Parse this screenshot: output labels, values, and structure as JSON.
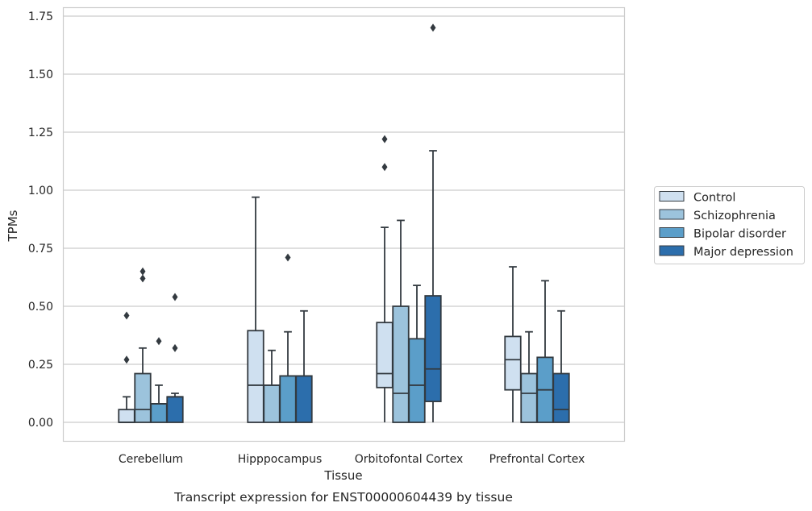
{
  "chart_data": {
    "type": "box",
    "title": "",
    "caption": "Transcript expression for ENST00000604439 by tissue",
    "xlabel": "Tissue",
    "ylabel": "TPMs",
    "ylim": [
      -0.08,
      1.78
    ],
    "yticks": [
      0.0,
      0.25,
      0.5,
      0.75,
      1.0,
      1.25,
      1.5,
      1.75
    ],
    "ytick_labels": [
      "0.00",
      "0.25",
      "0.50",
      "0.75",
      "1.00",
      "1.25",
      "1.50",
      "1.75"
    ],
    "grid": "horizontal",
    "legend_position": "right",
    "categories": [
      "Cerebellum",
      "Hipppocampus",
      "Orbitofontal Cortex",
      "Prefrontal Cortex"
    ],
    "series": [
      {
        "name": "Control",
        "color": "#cfe0f0",
        "boxes": [
          {
            "q1": 0.0,
            "median": 0.0,
            "q3": 0.055,
            "whisker_low": 0.0,
            "whisker_high": 0.11,
            "outliers": [
              0.27,
              0.46
            ]
          },
          {
            "q1": 0.0,
            "median": 0.16,
            "q3": 0.395,
            "whisker_low": 0.0,
            "whisker_high": 0.97,
            "outliers": []
          },
          {
            "q1": 0.15,
            "median": 0.21,
            "q3": 0.43,
            "whisker_low": 0.0,
            "whisker_high": 0.84,
            "outliers": [
              1.1,
              1.22
            ]
          },
          {
            "q1": 0.14,
            "median": 0.27,
            "q3": 0.37,
            "whisker_low": 0.0,
            "whisker_high": 0.67,
            "outliers": []
          }
        ]
      },
      {
        "name": "Schizophrenia",
        "color": "#9cc3dc",
        "boxes": [
          {
            "q1": 0.0,
            "median": 0.055,
            "q3": 0.21,
            "whisker_low": 0.0,
            "whisker_high": 0.32,
            "outliers": [
              0.62,
              0.65
            ]
          },
          {
            "q1": 0.0,
            "median": 0.16,
            "q3": 0.16,
            "whisker_low": 0.0,
            "whisker_high": 0.31,
            "outliers": []
          },
          {
            "q1": 0.0,
            "median": 0.125,
            "q3": 0.5,
            "whisker_low": 0.0,
            "whisker_high": 0.87,
            "outliers": []
          },
          {
            "q1": 0.0,
            "median": 0.125,
            "q3": 0.21,
            "whisker_low": 0.0,
            "whisker_high": 0.39,
            "outliers": []
          }
        ]
      },
      {
        "name": "Bipolar disorder",
        "color": "#5b9ec9",
        "boxes": [
          {
            "q1": 0.0,
            "median": 0.08,
            "q3": 0.08,
            "whisker_low": 0.0,
            "whisker_high": 0.16,
            "outliers": [
              0.35
            ]
          },
          {
            "q1": 0.0,
            "median": 0.2,
            "q3": 0.2,
            "whisker_low": 0.0,
            "whisker_high": 0.39,
            "outliers": [
              0.71
            ]
          },
          {
            "q1": 0.0,
            "median": 0.16,
            "q3": 0.36,
            "whisker_low": 0.0,
            "whisker_high": 0.59,
            "outliers": []
          },
          {
            "q1": 0.0,
            "median": 0.14,
            "q3": 0.28,
            "whisker_low": 0.0,
            "whisker_high": 0.61,
            "outliers": []
          }
        ]
      },
      {
        "name": "Major depression",
        "color": "#2c6eac",
        "boxes": [
          {
            "q1": 0.0,
            "median": 0.11,
            "q3": 0.11,
            "whisker_low": 0.0,
            "whisker_high": 0.125,
            "outliers": [
              0.32,
              0.54
            ]
          },
          {
            "q1": 0.0,
            "median": 0.2,
            "q3": 0.2,
            "whisker_low": 0.0,
            "whisker_high": 0.48,
            "outliers": []
          },
          {
            "q1": 0.09,
            "median": 0.23,
            "q3": 0.545,
            "whisker_low": 0.0,
            "whisker_high": 1.17,
            "outliers": [
              1.7
            ]
          },
          {
            "q1": 0.0,
            "median": 0.055,
            "q3": 0.21,
            "whisker_low": 0.0,
            "whisker_high": 0.48,
            "outliers": []
          }
        ]
      }
    ]
  }
}
